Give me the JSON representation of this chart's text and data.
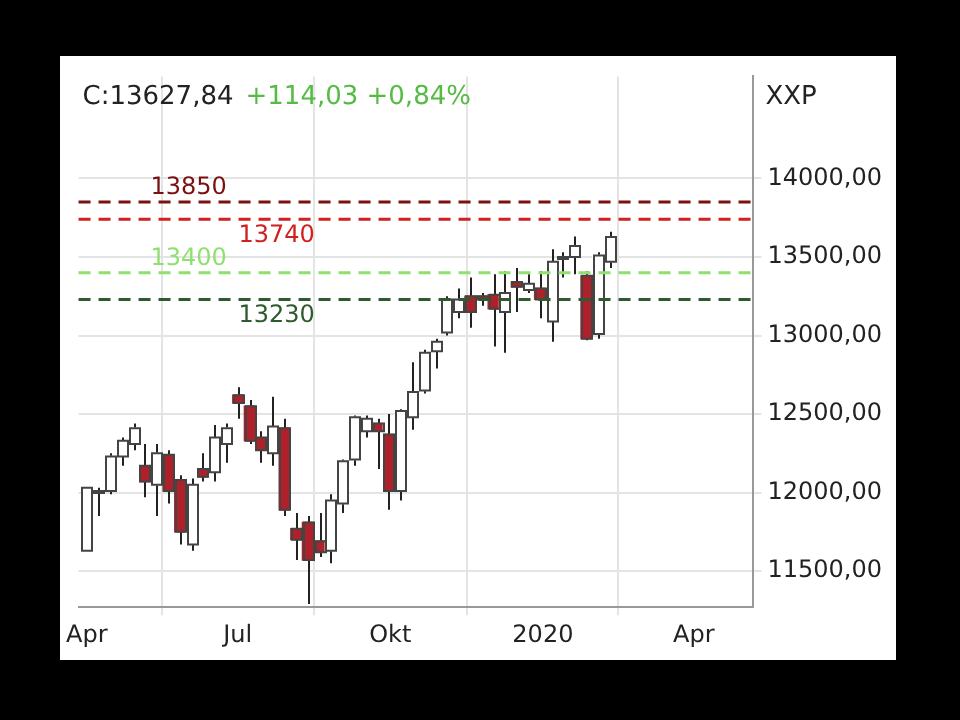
{
  "chart_data": {
    "type": "candlestick",
    "annotations": [
      "C:13627,84",
      "+114,03 +0,84%",
      "XXP"
    ],
    "x": [
      "2019-04-01",
      "2019-04-08",
      "2019-04-15",
      "2019-04-22",
      "2019-04-29",
      "2019-05-06",
      "2019-05-13",
      "2019-05-20",
      "2019-05-27",
      "2019-06-03",
      "2019-06-10",
      "2019-06-17",
      "2019-06-24",
      "2019-07-01",
      "2019-07-08",
      "2019-07-15",
      "2019-07-22",
      "2019-07-29",
      "2019-08-05",
      "2019-08-12",
      "2019-08-19",
      "2019-08-26",
      "2019-09-02",
      "2019-09-09",
      "2019-09-16",
      "2019-09-23",
      "2019-09-30",
      "2019-10-07",
      "2019-10-14",
      "2019-10-21",
      "2019-10-28",
      "2019-11-04",
      "2019-11-11",
      "2019-11-18",
      "2019-11-25",
      "2019-12-02",
      "2019-12-09",
      "2019-12-16",
      "2019-12-23",
      "2019-12-30",
      "2020-01-06",
      "2020-01-13",
      "2020-01-20",
      "2020-01-27",
      "2020-02-03",
      "2020-02-10"
    ],
    "ohlc": [
      [
        11630,
        12030,
        11630,
        12030
      ],
      [
        12000,
        12030,
        11850,
        12010
      ],
      [
        12010,
        12250,
        11990,
        12230
      ],
      [
        12230,
        12350,
        12170,
        12330
      ],
      [
        12310,
        12440,
        12270,
        12410
      ],
      [
        12170,
        12310,
        11970,
        12070
      ],
      [
        12050,
        12310,
        11850,
        12250
      ],
      [
        12240,
        12270,
        11930,
        12010
      ],
      [
        12080,
        12110,
        11670,
        11750
      ],
      [
        11670,
        12090,
        11630,
        12050
      ],
      [
        12150,
        12250,
        12070,
        12100
      ],
      [
        12130,
        12430,
        12070,
        12350
      ],
      [
        12310,
        12440,
        12190,
        12410
      ],
      [
        12620,
        12670,
        12470,
        12570
      ],
      [
        12550,
        12590,
        12310,
        12330
      ],
      [
        12350,
        12390,
        12190,
        12270
      ],
      [
        12250,
        12610,
        12170,
        12420
      ],
      [
        12410,
        12470,
        11850,
        11890
      ],
      [
        11770,
        11870,
        11570,
        11700
      ],
      [
        11810,
        11850,
        11290,
        11570
      ],
      [
        11690,
        11870,
        11590,
        11620
      ],
      [
        11630,
        11990,
        11550,
        11950
      ],
      [
        11930,
        12210,
        11870,
        12200
      ],
      [
        12210,
        12490,
        12170,
        12480
      ],
      [
        12390,
        12490,
        12350,
        12470
      ],
      [
        12440,
        12470,
        12150,
        12390
      ],
      [
        12370,
        12500,
        11890,
        12010
      ],
      [
        12010,
        12530,
        11950,
        12520
      ],
      [
        12480,
        12830,
        12400,
        12640
      ],
      [
        12650,
        12910,
        12630,
        12890
      ],
      [
        12900,
        12980,
        12790,
        12960
      ],
      [
        13020,
        13250,
        13000,
        13230
      ],
      [
        13150,
        13300,
        13110,
        13230
      ],
      [
        13250,
        13370,
        13050,
        13150
      ],
      [
        13250,
        13270,
        13190,
        13230
      ],
      [
        13260,
        13390,
        12930,
        13170
      ],
      [
        13150,
        13410,
        12890,
        13270
      ],
      [
        13340,
        13430,
        13150,
        13310
      ],
      [
        13290,
        13390,
        13270,
        13330
      ],
      [
        13300,
        13410,
        13110,
        13230
      ],
      [
        13090,
        13550,
        12960,
        13470
      ],
      [
        13490,
        13530,
        13370,
        13500
      ],
      [
        13500,
        13630,
        13390,
        13570
      ],
      [
        13380,
        13410,
        12970,
        12980
      ],
      [
        13010,
        13530,
        12980,
        13510
      ],
      [
        13470,
        13660,
        13430,
        13627.84
      ]
    ],
    "colors": [
      "#ffffff",
      "#ffffff",
      "#ffffff",
      "#ffffff",
      "#ffffff",
      "#b0202a",
      "#ffffff",
      "#b0202a",
      "#b0202a",
      "#ffffff",
      "#b0202a",
      "#ffffff",
      "#ffffff",
      "#b0202a",
      "#b0202a",
      "#b0202a",
      "#ffffff",
      "#b0202a",
      "#b0202a",
      "#b0202a",
      "#b0202a",
      "#ffffff",
      "#ffffff",
      "#ffffff",
      "#ffffff",
      "#b0202a",
      "#b0202a",
      "#ffffff",
      "#ffffff",
      "#ffffff",
      "#ffffff",
      "#ffffff",
      "#ffffff",
      "#b0202a",
      "#b0202a",
      "#b0202a",
      "#ffffff",
      "#b0202a",
      "#ffffff",
      "#b0202a",
      "#ffffff",
      "#ffffff",
      "#ffffff",
      "#b0202a",
      "#ffffff",
      "#ffffff"
    ],
    "xlim": [
      "2019-03-27",
      "2020-05-07"
    ],
    "xticks": [
      {
        "value": "2019-04-01",
        "label": "Apr"
      },
      {
        "value": "2019-07-01",
        "label": "Jul"
      },
      {
        "value": "2019-10-01",
        "label": "Okt"
      },
      {
        "value": "2020-01-01",
        "label": "2020"
      },
      {
        "value": "2020-04-01",
        "label": "Apr"
      }
    ],
    "ylim": [
      11270,
      14650
    ],
    "yticks": [
      {
        "value": 11500,
        "label": "11500,00"
      },
      {
        "value": 12000,
        "label": "12000,00"
      },
      {
        "value": 12500,
        "label": "12500,00"
      },
      {
        "value": 13000,
        "label": "13000,00"
      },
      {
        "value": 13500,
        "label": "13500,00"
      },
      {
        "value": 14000,
        "label": "14000,00"
      }
    ],
    "ref_lines": [
      {
        "axis": "y",
        "value": 13850,
        "label": "13850",
        "color": "#7a1010",
        "line_style": "dashed"
      },
      {
        "axis": "y",
        "value": 13740,
        "label": "13740",
        "color": "#d02020",
        "line_style": "dashed"
      },
      {
        "axis": "y",
        "value": 13400,
        "label": "13400",
        "color": "#90e070",
        "line_style": "dashed"
      },
      {
        "axis": "y",
        "value": 13230,
        "label": "13230",
        "color": "#2f5a2f",
        "line_style": "dashed"
      }
    ],
    "grid": true
  }
}
